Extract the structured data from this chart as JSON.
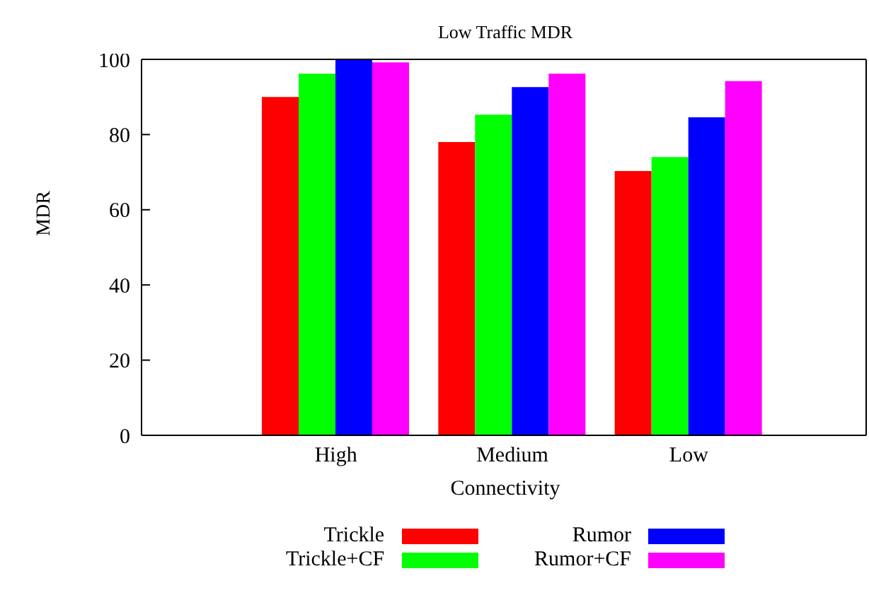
{
  "chart_data": {
    "type": "bar",
    "title": "Low Traffic MDR",
    "xlabel": "Connectivity",
    "ylabel": "MDR",
    "categories": [
      "High",
      "Medium",
      "Low"
    ],
    "series": [
      {
        "name": "Trickle",
        "color": "#ff0000",
        "values": [
          90,
          78,
          70.3
        ]
      },
      {
        "name": "Trickle+CF",
        "color": "#00ff00",
        "values": [
          96.2,
          85.3,
          74
        ]
      },
      {
        "name": "Rumor",
        "color": "#0000ff",
        "values": [
          100,
          92.6,
          84.6
        ]
      },
      {
        "name": "Rumor+CF",
        "color": "#ff00ff",
        "values": [
          99.2,
          96.2,
          94.2
        ]
      }
    ],
    "ylim": [
      0,
      100
    ],
    "yticks": [
      0,
      20,
      40,
      60,
      80,
      100
    ],
    "grid": false,
    "legend": "bottom"
  }
}
